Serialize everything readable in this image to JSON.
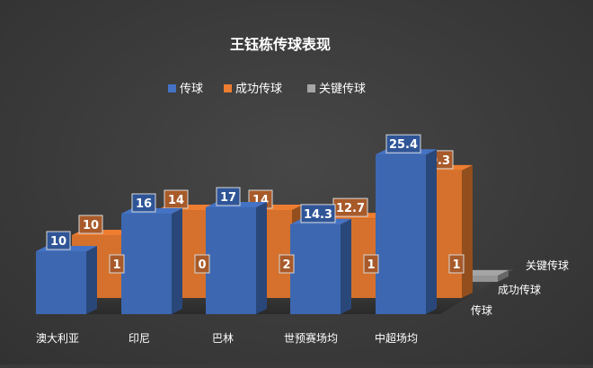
{
  "colors": {
    "pass": "#4472c4",
    "success": "#ed7d31",
    "key": "#a5a5a5",
    "background": "#3a3a3a",
    "text": "#ffffff"
  },
  "chart_data": {
    "type": "bar",
    "style": "3d-column",
    "title": "王钰栋传球表现",
    "categories": [
      "澳大利亚",
      "印尼",
      "巴林",
      "世预赛场均",
      "中超场均"
    ],
    "series": [
      {
        "name": "传球",
        "values": [
          10,
          16,
          17,
          14.3,
          25.4
        ]
      },
      {
        "name": "成功传球",
        "values": [
          10,
          14,
          14,
          12.7,
          20.3
        ]
      },
      {
        "name": "关键传球",
        "values": [
          1,
          0,
          2,
          1,
          1
        ]
      }
    ],
    "depth_labels": [
      "关键传球",
      "成功传球",
      "传球"
    ],
    "legend_position": "top",
    "grid": false
  }
}
